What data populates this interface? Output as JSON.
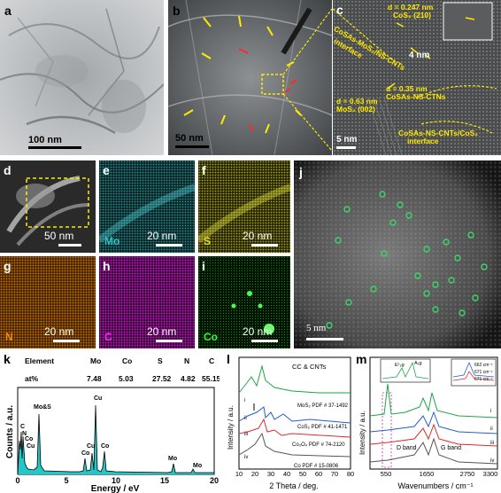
{
  "panels": {
    "a": {
      "label": "a",
      "scale": "100 nm"
    },
    "b": {
      "label": "b",
      "scale": "50 nm"
    },
    "c": {
      "label": "c",
      "scale": "5 nm",
      "ann1": "d = 0.247 nm",
      "ann1b": "CoS₂ (210)",
      "ann2": "CoSAs-MoS₂/NS-CNTs",
      "ann2b": "interface",
      "ann3": "4 nm",
      "ann4": "d = 0.35 nm",
      "ann4b": "CoSAs-NS-CTNs",
      "ann5": "d = 0.63 nm",
      "ann5b": "MoS₂ (002)",
      "ann6": "CoSAs-NS-CNTs/CoS₂",
      "ann6b": "interface"
    },
    "d": {
      "label": "d",
      "scale": "50 nm"
    },
    "e": {
      "label": "e",
      "scale": "20 nm",
      "element": "Mo",
      "color": "#2ec4c8"
    },
    "f": {
      "label": "f",
      "scale": "20 nm",
      "element": "S",
      "color": "#e3e01a"
    },
    "g": {
      "label": "g",
      "scale": "20 nm",
      "element": "N",
      "color": "#ff8c00"
    },
    "h": {
      "label": "h",
      "scale": "20 nm",
      "element": "C",
      "color": "#ff2cff"
    },
    "i": {
      "label": "i",
      "scale": "20 nm",
      "element": "Co",
      "color": "#2cff2c"
    },
    "j": {
      "label": "j",
      "scale": "5 nm"
    }
  },
  "panel_k": {
    "label": "k",
    "table_header": [
      "Element",
      "Mo",
      "Co",
      "S",
      "N",
      "C"
    ],
    "table_row": [
      "at%",
      "7.48",
      "5.03",
      "27.52",
      "4.82",
      "55.15"
    ],
    "ylabel": "Counts / a.u.",
    "xlabel": "Energy / eV",
    "peak_labels": [
      "C",
      "N",
      "Co",
      "Cu",
      "Mo&S",
      "Cu",
      "Co",
      "Cu",
      "Co",
      "Mo",
      "Mo"
    ]
  },
  "panel_l": {
    "label": "l",
    "ylabel": "Intensity / a.u.",
    "xlabel": "2 Theta / deg.",
    "note": "CC & CNTs",
    "refs": [
      "MoS₂ PDF # 37-1492",
      "CoS₂ PDF # 41-1471",
      "Co₃O₄ PDF # 74-2120",
      "Co PDF # 15-0806"
    ],
    "series_labels": [
      "i",
      "ii",
      "iii",
      "iv"
    ]
  },
  "panel_m": {
    "label": "m",
    "ylabel": "Intensity / a.u.",
    "xlabel": "Wavenumbers / cm⁻¹",
    "inset_labels": [
      "E¹₂g",
      "A₁g"
    ],
    "inset2_labels": [
      "662 cm⁻¹",
      "671 cm⁻¹",
      "671 cm⁻¹"
    ],
    "band_labels": [
      "D band",
      "G band"
    ],
    "series_labels": [
      "i",
      "ii",
      "iii",
      "iv"
    ]
  },
  "chart_data": [
    {
      "type": "line",
      "title": "",
      "xlabel": "Energy / eV",
      "ylabel": "Counts / a.u.",
      "xlim": [
        0,
        20
      ],
      "x_ticks": [
        0,
        5,
        10,
        15,
        20
      ],
      "peaks": [
        {
          "x": 0.28,
          "label": "C"
        },
        {
          "x": 0.39,
          "label": "N"
        },
        {
          "x": 0.78,
          "label": "Co"
        },
        {
          "x": 0.93,
          "label": "Cu"
        },
        {
          "x": 2.3,
          "label": "Mo&S"
        },
        {
          "x": 6.93,
          "label": "Co"
        },
        {
          "x": 7.65,
          "label": "Co"
        },
        {
          "x": 8.05,
          "label": "Cu"
        },
        {
          "x": 8.9,
          "label": "Cu"
        },
        {
          "x": 17.4,
          "label": "Mo"
        },
        {
          "x": 19.6,
          "label": "Mo"
        }
      ]
    },
    {
      "type": "line",
      "xlabel": "2 Theta / deg.",
      "ylabel": "Intensity / a.u.",
      "xlim": [
        10,
        80
      ],
      "x_ticks": [
        10,
        20,
        30,
        40,
        50,
        60,
        70,
        80
      ],
      "series": [
        {
          "name": "i"
        },
        {
          "name": "ii"
        },
        {
          "name": "iii"
        },
        {
          "name": "iv"
        }
      ]
    },
    {
      "type": "line",
      "xlabel": "Wavenumbers / cm⁻¹",
      "ylabel": "Intensity / a.u.",
      "x_ticks": [
        550,
        1650,
        2750,
        3300
      ],
      "series": [
        {
          "name": "i"
        },
        {
          "name": "ii"
        },
        {
          "name": "iii"
        },
        {
          "name": "iv"
        }
      ]
    }
  ]
}
